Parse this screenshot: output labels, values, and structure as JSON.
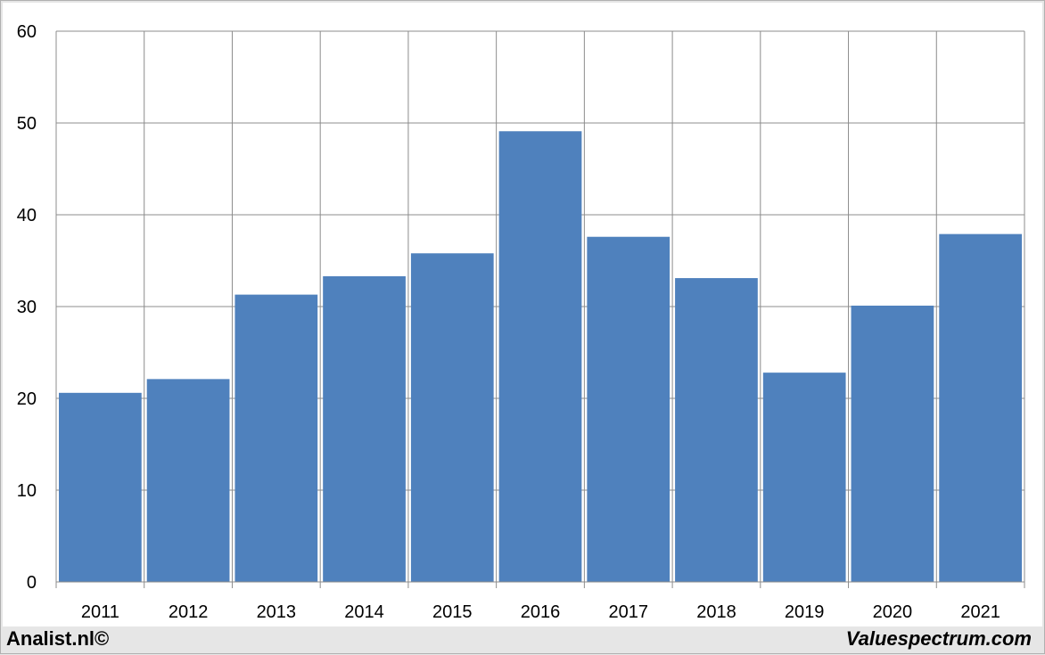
{
  "chart_data": {
    "type": "bar",
    "categories": [
      "2011",
      "2012",
      "2013",
      "2014",
      "2015",
      "2016",
      "2017",
      "2018",
      "2019",
      "2020",
      "2021"
    ],
    "values": [
      20.6,
      22.1,
      31.3,
      33.3,
      35.8,
      49.1,
      37.6,
      33.1,
      22.8,
      30.1,
      37.9
    ],
    "ylim": [
      0,
      60
    ],
    "yticks": [
      0,
      10,
      20,
      30,
      40,
      50,
      60
    ],
    "grid": true,
    "bar_color": "#4f81bd",
    "title": "",
    "xlabel": "",
    "ylabel": ""
  },
  "footer": {
    "left": "Analist.nl©",
    "right": "Valuespectrum.com"
  }
}
